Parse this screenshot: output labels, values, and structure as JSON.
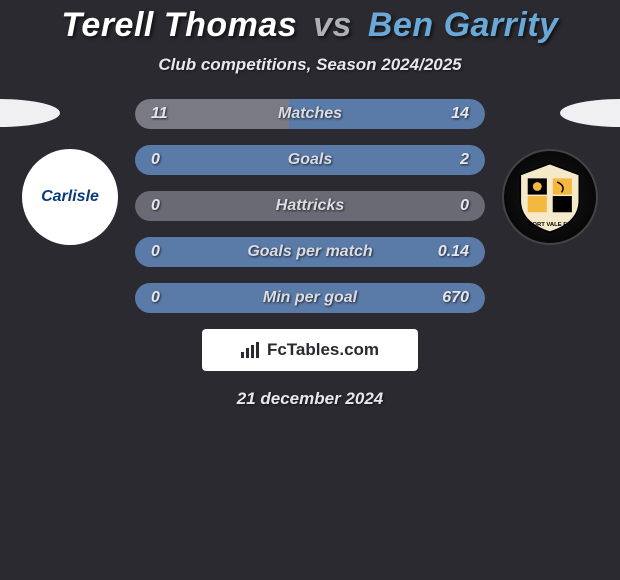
{
  "page": {
    "background_color": "#2a2a30",
    "title_font_size": 34,
    "stat_font_size": 16
  },
  "header": {
    "player1": "Terell Thomas",
    "vs": "vs",
    "player2": "Ben Garrity",
    "player1_color": "#ffffff",
    "vs_color": "#aeb0b6",
    "player2_color": "#6aa8d8",
    "subtitle": "Club competitions, Season 2024/2025"
  },
  "clubs": {
    "left_name": "Carlisle",
    "left_badge_bg": "#ffffff",
    "left_text_color": "#0a3a7a",
    "right_name": "Port Vale FC",
    "right_badge_bg": "#000000"
  },
  "colors": {
    "bar_bg": "#3a3a44",
    "p1_fill": "#7a7a84",
    "p2_fill": "#5a7ba8",
    "neutral_fill": "#6a6a74",
    "oval": "#f0f0f2"
  },
  "stats": [
    {
      "label": "Matches",
      "p1": "11",
      "p2": "14",
      "p1_pct": 44,
      "p2_pct": 56
    },
    {
      "label": "Goals",
      "p1": "0",
      "p2": "2",
      "p1_pct": 0,
      "p2_pct": 100
    },
    {
      "label": "Hattricks",
      "p1": "0",
      "p2": "0",
      "p1_pct": 50,
      "p2_pct": 50
    },
    {
      "label": "Goals per match",
      "p1": "0",
      "p2": "0.14",
      "p1_pct": 0,
      "p2_pct": 100
    },
    {
      "label": "Min per goal",
      "p1": "0",
      "p2": "670",
      "p1_pct": 0,
      "p2_pct": 100
    }
  ],
  "attribution": {
    "site": "FcTables.com"
  },
  "date": "21 december 2024"
}
